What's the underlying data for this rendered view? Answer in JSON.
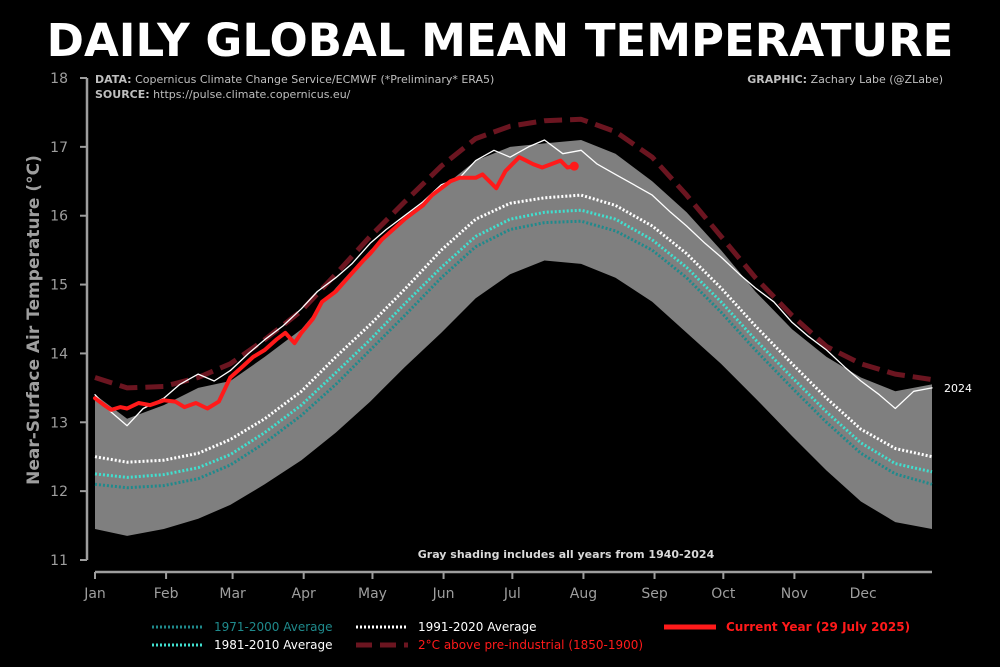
{
  "title": "DAILY GLOBAL MEAN TEMPERATURE",
  "credits": {
    "data_label": "DATA:",
    "data_text": "Copernicus Climate Change Service/ECMWF (*Preliminary* ERA5)",
    "source_label": "SOURCE:",
    "source_text": "https://pulse.climate.copernicus.eu/",
    "graphic_label": "GRAPHIC:",
    "graphic_text": "Zachary Labe (@ZLabe)"
  },
  "note": "Gray shading includes all years from 1940-2024",
  "colors": {
    "background": "#000000",
    "shading": "#7f7f7f",
    "current": "#ff1a1a",
    "preindustrial": "#6b1520",
    "avg_1971": "#1f8a8c",
    "avg_1981": "#40e0d0",
    "avg_1991": "#ffffff"
  },
  "chart_data": {
    "type": "line",
    "ylabel": "Near-Surface Air Temperature (°C)",
    "xlabel": "",
    "ylim": [
      11,
      18
    ],
    "yticks": [
      "11",
      "12",
      "13",
      "14",
      "15",
      "16",
      "17",
      "18"
    ],
    "xlim": [
      1,
      366
    ],
    "xtick_labels": [
      "Jan",
      "Feb",
      "Mar",
      "Apr",
      "May",
      "Jun",
      "Jul",
      "Aug",
      "Sep",
      "Oct",
      "Nov",
      "Dec"
    ],
    "xtick_days": [
      1,
      32,
      61,
      92,
      122,
      153,
      183,
      214,
      245,
      275,
      306,
      336
    ],
    "series_end_label": "2024",
    "shading_range": {
      "x": [
        1,
        15,
        31,
        46,
        60,
        75,
        91,
        106,
        121,
        136,
        152,
        167,
        182,
        197,
        213,
        228,
        244,
        259,
        274,
        289,
        305,
        320,
        335,
        350,
        366
      ],
      "lower": [
        11.45,
        11.35,
        11.45,
        11.6,
        11.8,
        12.1,
        12.45,
        12.85,
        13.3,
        13.8,
        14.3,
        14.8,
        15.15,
        15.35,
        15.3,
        15.1,
        14.75,
        14.3,
        13.85,
        13.35,
        12.8,
        12.3,
        11.85,
        11.55,
        11.45
      ],
      "upper": [
        13.4,
        13.05,
        13.25,
        13.5,
        13.6,
        13.95,
        14.35,
        14.95,
        15.5,
        15.95,
        16.4,
        16.8,
        17.0,
        17.05,
        17.1,
        16.9,
        16.5,
        16.05,
        15.5,
        14.9,
        14.35,
        13.95,
        13.65,
        13.45,
        13.55
      ]
    },
    "series": [
      {
        "name": "1971-2000 Average",
        "x": [
          1,
          15,
          31,
          46,
          60,
          75,
          91,
          106,
          121,
          136,
          152,
          167,
          182,
          197,
          213,
          228,
          244,
          259,
          274,
          289,
          305,
          320,
          335,
          350,
          366
        ],
        "values": [
          12.1,
          12.05,
          12.08,
          12.18,
          12.38,
          12.7,
          13.1,
          13.55,
          14.05,
          14.55,
          15.1,
          15.55,
          15.8,
          15.9,
          15.92,
          15.78,
          15.5,
          15.1,
          14.6,
          14.05,
          13.5,
          13.0,
          12.55,
          12.25,
          12.1
        ]
      },
      {
        "name": "1981-2010 Average",
        "x": [
          1,
          15,
          31,
          46,
          60,
          75,
          91,
          106,
          121,
          136,
          152,
          167,
          182,
          197,
          213,
          228,
          244,
          259,
          274,
          289,
          305,
          320,
          335,
          350,
          366
        ],
        "values": [
          12.25,
          12.2,
          12.24,
          12.34,
          12.53,
          12.85,
          13.25,
          13.72,
          14.2,
          14.72,
          15.25,
          15.7,
          15.95,
          16.05,
          16.08,
          15.95,
          15.65,
          15.25,
          14.75,
          14.2,
          13.65,
          13.15,
          12.7,
          12.4,
          12.28
        ]
      },
      {
        "name": "1991-2020 Average",
        "x": [
          1,
          15,
          31,
          46,
          60,
          75,
          91,
          106,
          121,
          136,
          152,
          167,
          182,
          197,
          213,
          228,
          244,
          259,
          274,
          289,
          305,
          320,
          335,
          350,
          366
        ],
        "values": [
          12.5,
          12.42,
          12.45,
          12.55,
          12.75,
          13.05,
          13.45,
          13.95,
          14.42,
          14.93,
          15.5,
          15.95,
          16.18,
          16.26,
          16.3,
          16.15,
          15.85,
          15.45,
          14.95,
          14.4,
          13.85,
          13.35,
          12.9,
          12.62,
          12.5
        ]
      },
      {
        "name": "2°C above pre-industrial (1850-1900)",
        "x": [
          1,
          15,
          31,
          46,
          60,
          75,
          91,
          106,
          121,
          136,
          152,
          167,
          182,
          197,
          213,
          228,
          244,
          259,
          274,
          289,
          305,
          320,
          335,
          350,
          366
        ],
        "values": [
          13.65,
          13.5,
          13.52,
          13.65,
          13.85,
          14.2,
          14.62,
          15.15,
          15.7,
          16.2,
          16.72,
          17.12,
          17.3,
          17.38,
          17.4,
          17.22,
          16.85,
          16.3,
          15.7,
          15.1,
          14.55,
          14.1,
          13.85,
          13.7,
          13.62
        ]
      },
      {
        "name": "2024",
        "x": [
          1,
          8,
          15,
          22,
          31,
          38,
          46,
          53,
          60,
          68,
          75,
          83,
          91,
          98,
          106,
          113,
          121,
          128,
          136,
          144,
          152,
          160,
          167,
          175,
          182,
          190,
          197,
          205,
          213,
          220,
          228,
          236,
          244,
          252,
          259,
          267,
          274,
          282,
          289,
          297,
          305,
          312,
          320,
          328,
          335,
          343,
          350,
          358,
          366
        ],
        "values": [
          13.4,
          13.15,
          12.95,
          13.2,
          13.35,
          13.55,
          13.7,
          13.6,
          13.75,
          14.0,
          14.2,
          14.4,
          14.65,
          14.9,
          15.1,
          15.3,
          15.6,
          15.8,
          16.0,
          16.2,
          16.45,
          16.55,
          16.8,
          16.95,
          16.85,
          17.0,
          17.1,
          16.9,
          16.95,
          16.75,
          16.6,
          16.45,
          16.3,
          16.05,
          15.85,
          15.6,
          15.4,
          15.15,
          14.95,
          14.75,
          14.45,
          14.25,
          14.05,
          13.8,
          13.6,
          13.4,
          13.2,
          13.45,
          13.5
        ]
      },
      {
        "name": "Current Year (29 July 2025)",
        "x": [
          1,
          5,
          8,
          12,
          15,
          20,
          25,
          31,
          36,
          40,
          45,
          50,
          55,
          60,
          65,
          70,
          75,
          80,
          84,
          88,
          91,
          96,
          100,
          106,
          110,
          114,
          118,
          121,
          126,
          131,
          136,
          140,
          144,
          148,
          152,
          156,
          160,
          164,
          167,
          170,
          173,
          176,
          180,
          183,
          186,
          189,
          192,
          196,
          200,
          204,
          207,
          210
        ],
        "values": [
          13.35,
          13.25,
          13.18,
          13.22,
          13.2,
          13.28,
          13.25,
          13.32,
          13.3,
          13.22,
          13.28,
          13.2,
          13.3,
          13.65,
          13.8,
          13.95,
          14.05,
          14.2,
          14.3,
          14.15,
          14.3,
          14.5,
          14.75,
          14.9,
          15.05,
          15.2,
          15.35,
          15.45,
          15.65,
          15.8,
          15.95,
          16.05,
          16.15,
          16.3,
          16.4,
          16.5,
          16.55,
          16.55,
          16.55,
          16.6,
          16.5,
          16.4,
          16.65,
          16.75,
          16.85,
          16.8,
          16.75,
          16.7,
          16.75,
          16.8,
          16.7,
          16.72
        ]
      }
    ],
    "legend": [
      {
        "label": "1971-2000 Average",
        "style": "dotted",
        "color": "#1f8a8c",
        "text_color": "#1f8a8c"
      },
      {
        "label": "1981-2010 Average",
        "style": "dotted",
        "color": "#40e0d0",
        "text_color": "#ffffff"
      },
      {
        "label": "1991-2020 Average",
        "style": "dotted",
        "color": "#ffffff",
        "text_color": "#ffffff"
      },
      {
        "label": "2°C above pre-industrial (1850-1900)",
        "style": "dashed",
        "color": "#6b1520",
        "text_color": "#ff1a1a"
      },
      {
        "label": "Current Year (29 July 2025)",
        "style": "solid",
        "color": "#ff1a1a",
        "text_color": "#ff1a1a"
      }
    ],
    "legend_position": "bottom"
  }
}
